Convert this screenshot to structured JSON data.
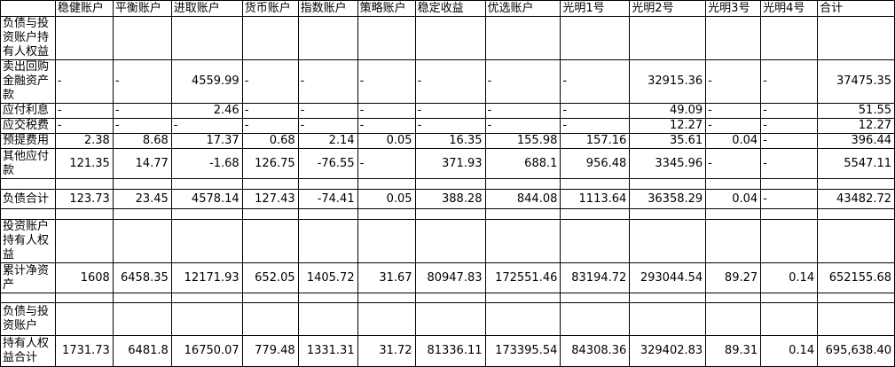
{
  "colors": {
    "background": "#ffffff",
    "grid_border": "#000000",
    "text": "#000000"
  },
  "table": {
    "corner_label": "",
    "columns": [
      "稳健账户",
      "平衡账户",
      "进取账户",
      "货币账户",
      "指数账户",
      "策略账户",
      "稳定收益",
      "优选账户",
      "光明1号",
      "光明2号",
      "光明3号",
      "光明4号",
      "合计"
    ],
    "rows": [
      {
        "label": "负债与投资账户持有人权益",
        "cells": [
          "",
          "",
          "",
          "",
          "",
          "",
          "",
          "",
          "",
          "",
          "",
          "",
          ""
        ]
      },
      {
        "label": "卖出回购金融资产款",
        "cells": [
          "-",
          "-",
          "4559.99",
          "-",
          "-",
          "-",
          "-",
          "-",
          "-",
          "32915.36",
          "-",
          "-",
          "37475.35"
        ]
      },
      {
        "label": "应付利息",
        "cells": [
          "-",
          "-",
          "2.46",
          "-",
          "-",
          "-",
          "-",
          "-",
          "-",
          "49.09",
          "-",
          "-",
          "51.55"
        ]
      },
      {
        "label": "应交税费",
        "cells": [
          "-",
          "-",
          "-",
          "-",
          "-",
          "-",
          "-",
          "-",
          "-",
          "12.27",
          "-",
          "-",
          "12.27"
        ]
      },
      {
        "label": "预提费用",
        "cells": [
          "2.38",
          "8.68",
          "17.37",
          "0.68",
          "2.14",
          "0.05",
          "16.35",
          "155.98",
          "157.16",
          "35.61",
          "0.04",
          "-",
          "396.44"
        ]
      },
      {
        "label": "其他应付款",
        "cells": [
          "121.35",
          "14.77",
          "-1.68",
          "126.75",
          "-76.55",
          "-",
          "371.93",
          "688.1",
          "956.48",
          "3345.96",
          "-",
          "-",
          "5547.11"
        ]
      },
      {
        "label": "",
        "cells": [
          "",
          "",
          "",
          "",
          "",
          "",
          "",
          "",
          "",
          "",
          "",
          "",
          ""
        ]
      },
      {
        "label": "负债合计",
        "cells": [
          "123.73",
          "23.45",
          "4578.14",
          "127.43",
          "-74.41",
          "0.05",
          "388.28",
          "844.08",
          "1113.64",
          "36358.29",
          "0.04",
          "-",
          "43482.72"
        ]
      },
      {
        "label": "",
        "cells": [
          "",
          "",
          "",
          "",
          "",
          "",
          "",
          "",
          "",
          "",
          "",
          "",
          ""
        ]
      },
      {
        "label": "投资账户持有人权益",
        "cells": [
          "",
          "",
          "",
          "",
          "",
          "",
          "",
          "",
          "",
          "",
          "",
          "",
          ""
        ]
      },
      {
        "label": "累计净资产",
        "cells": [
          "1608",
          "6458.35",
          "12171.93",
          "652.05",
          "1405.72",
          "31.67",
          "80947.83",
          "172551.46",
          "83194.72",
          "293044.54",
          "89.27",
          "0.14",
          "652155.68"
        ]
      },
      {
        "label": "",
        "cells": [
          "",
          "",
          "",
          "",
          "",
          "",
          "",
          "",
          "",
          "",
          "",
          "",
          ""
        ]
      },
      {
        "label": "负债与投资账户",
        "cells": [
          "",
          "",
          "",
          "",
          "",
          "",
          "",
          "",
          "",
          "",
          "",
          "",
          ""
        ]
      },
      {
        "label": "持有人权益合计",
        "cells": [
          "1731.73",
          "6481.8",
          "16750.07",
          "779.48",
          "1331.31",
          "31.72",
          "81336.11",
          "173395.54",
          "84308.36",
          "329402.83",
          "89.31",
          "0.14",
          "695,638.40"
        ]
      }
    ]
  }
}
